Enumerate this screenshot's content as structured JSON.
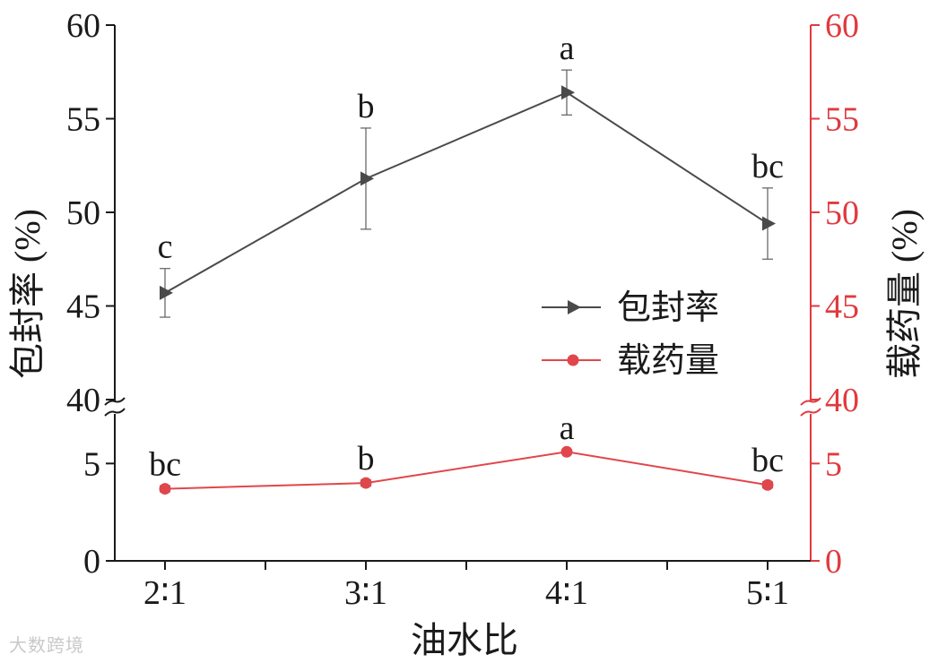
{
  "chart_data": {
    "type": "line",
    "xlabel": "油水比",
    "categories": [
      "2∶1",
      "3∶1",
      "4∶1",
      "5∶1"
    ],
    "left_axis": {
      "label": "包封率 (%)",
      "upper_ticks": [
        40,
        45,
        50,
        55,
        60
      ],
      "lower_ticks": [
        0,
        5
      ],
      "upper_range": [
        40,
        60
      ],
      "lower_range": [
        0,
        7.5
      ],
      "color": "#1a1a1a"
    },
    "right_axis": {
      "label": "载药量 (%)",
      "upper_ticks": [
        40,
        45,
        50,
        55,
        60
      ],
      "lower_ticks": [
        0,
        5
      ],
      "color": "#e03a3e"
    },
    "broken_axis": true,
    "series": [
      {
        "name": "包封率",
        "marker": "triangle-right",
        "color": "#4a4a4a",
        "values": [
          45.7,
          51.8,
          56.4,
          49.4
        ],
        "errors": [
          1.3,
          2.7,
          1.2,
          1.9
        ],
        "letters": [
          "c",
          "b",
          "a",
          "bc"
        ]
      },
      {
        "name": "载药量",
        "marker": "circle",
        "color": "#e0474c",
        "values": [
          3.7,
          4.0,
          5.6,
          3.9
        ],
        "errors": [
          0.15,
          0.15,
          0.1,
          0.15
        ],
        "letters": [
          "bc",
          "b",
          "a",
          "bc"
        ]
      }
    ],
    "legend_position": "center-right"
  },
  "watermark": "大数跨境"
}
